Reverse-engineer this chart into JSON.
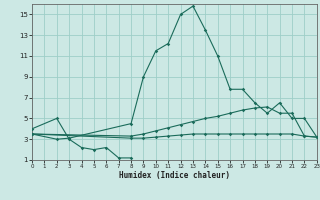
{
  "xlabel": "Humidex (Indice chaleur)",
  "bg_color": "#cce8e4",
  "grid_color": "#9ecec8",
  "line_color": "#1a6b5a",
  "xlim": [
    0,
    23
  ],
  "ylim": [
    1,
    16
  ],
  "xticks": [
    0,
    1,
    2,
    3,
    4,
    5,
    6,
    7,
    8,
    9,
    10,
    11,
    12,
    13,
    14,
    15,
    16,
    17,
    18,
    19,
    20,
    21,
    22,
    23
  ],
  "yticks": [
    1,
    3,
    5,
    7,
    9,
    11,
    13,
    15
  ],
  "line1_x": [
    0,
    2,
    3,
    4,
    5,
    6,
    7,
    8
  ],
  "line1_y": [
    4.0,
    5.0,
    3.0,
    2.2,
    2.0,
    2.2,
    1.2,
    1.2
  ],
  "line2_x": [
    0,
    2,
    3,
    8,
    9,
    10,
    11,
    12,
    13,
    14,
    15,
    16,
    17,
    18,
    19,
    20,
    21,
    22,
    23
  ],
  "line2_y": [
    3.5,
    3.0,
    3.1,
    4.5,
    9.0,
    11.5,
    12.2,
    15.0,
    15.8,
    13.5,
    11.0,
    7.8,
    7.8,
    6.5,
    5.5,
    6.5,
    5.0,
    5.0,
    3.2
  ],
  "line3_x": [
    0,
    8,
    9,
    10,
    11,
    12,
    13,
    14,
    15,
    16,
    17,
    18,
    19,
    20,
    21,
    22,
    23
  ],
  "line3_y": [
    3.5,
    3.3,
    3.5,
    3.8,
    4.1,
    4.4,
    4.7,
    5.0,
    5.2,
    5.5,
    5.8,
    6.0,
    6.1,
    5.5,
    5.5,
    3.3,
    3.2
  ],
  "line4_x": [
    0,
    8,
    9,
    10,
    11,
    12,
    13,
    14,
    15,
    16,
    17,
    18,
    19,
    20,
    21,
    22,
    23
  ],
  "line4_y": [
    3.5,
    3.1,
    3.1,
    3.2,
    3.3,
    3.4,
    3.5,
    3.5,
    3.5,
    3.5,
    3.5,
    3.5,
    3.5,
    3.5,
    3.5,
    3.3,
    3.2
  ]
}
